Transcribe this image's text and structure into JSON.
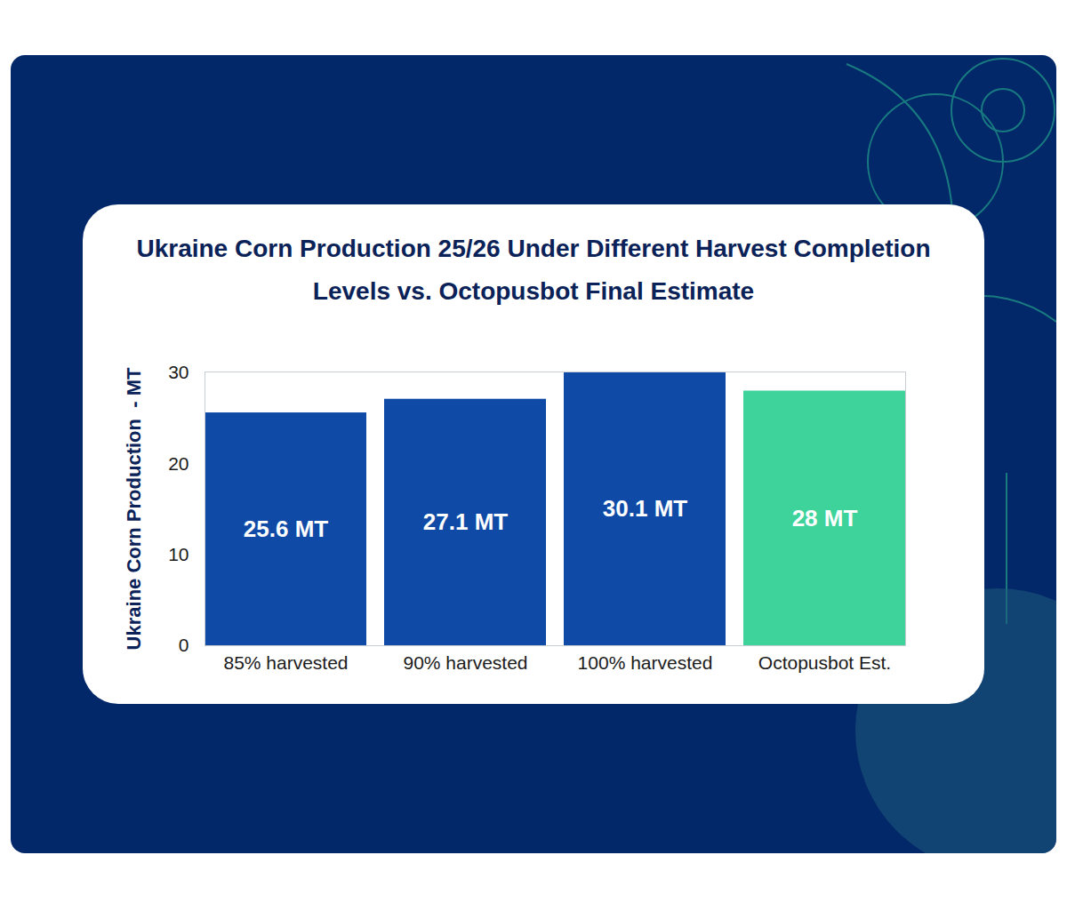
{
  "chart_data": {
    "type": "bar",
    "title": "Ukraine Corn Production 25/26 Under Different Harvest Completion Levels vs. Octopusbot Final Estimate",
    "ylabel": "Ukraine Corn Production  - MT",
    "categories": [
      "85% harvested",
      "90% harvested",
      "100% harvested",
      "Octopusbot Est."
    ],
    "values": [
      25.6,
      27.1,
      30.1,
      28
    ],
    "value_labels": [
      "25.6 MT",
      "27.1 MT",
      "30.1 MT",
      "28 MT"
    ],
    "colors": [
      "#0f4ba6",
      "#0f4ba6",
      "#0f4ba6",
      "#3dd39b"
    ],
    "ylim": [
      0,
      30.1
    ],
    "yticks": [
      0,
      10,
      20,
      30
    ],
    "data_labels": true,
    "grid": false
  }
}
